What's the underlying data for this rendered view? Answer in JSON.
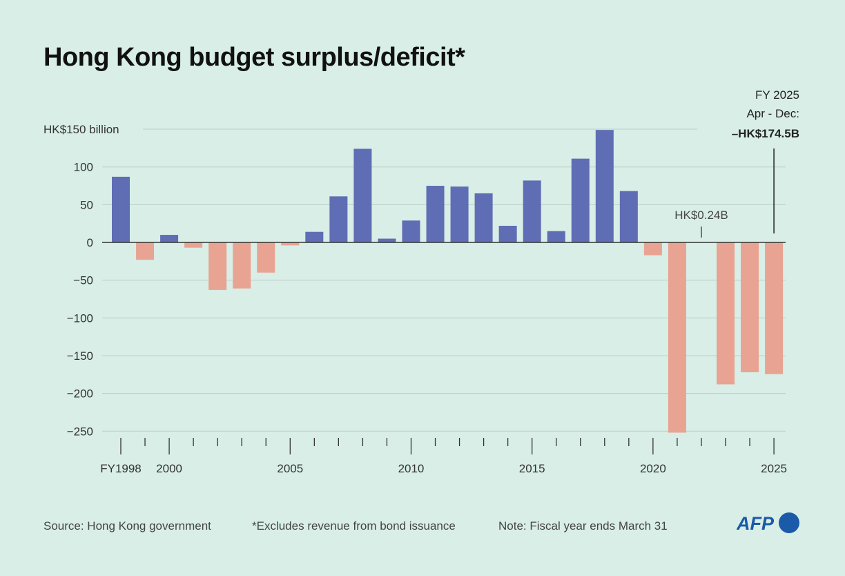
{
  "title": "Hong Kong budget surplus/deficit*",
  "footer": {
    "source": "Source: Hong Kong government",
    "note1": "*Excludes revenue from bond issuance",
    "note2": "Note: Fiscal year ends March 31",
    "logo": "AFP"
  },
  "colors": {
    "background": "#d8eee6",
    "surplus": "#5f6db5",
    "deficit": "#e9a393"
  },
  "chart_data": {
    "type": "bar",
    "title": "Hong Kong budget surplus/deficit*",
    "xlabel": "",
    "ylabel": "",
    "ylim": [
      -250,
      150
    ],
    "grid": true,
    "legend": "none",
    "y_ticks": [
      150,
      100,
      50,
      0,
      -50,
      -100,
      -150,
      -200,
      -250
    ],
    "y_tick_labels": [
      "HK$150 billion",
      "100",
      "50",
      "0",
      "−50",
      "−100",
      "−150",
      "−200",
      "−250"
    ],
    "x_tick_labels": [
      {
        "year": 1998,
        "label": "FY1998"
      },
      {
        "year": 2000,
        "label": "2000"
      },
      {
        "year": 2005,
        "label": "2005"
      },
      {
        "year": 2010,
        "label": "2010"
      },
      {
        "year": 2015,
        "label": "2015"
      },
      {
        "year": 2020,
        "label": "2020"
      },
      {
        "year": 2025,
        "label": "2025"
      }
    ],
    "categories": [
      1998,
      1999,
      2000,
      2001,
      2002,
      2003,
      2004,
      2005,
      2006,
      2007,
      2008,
      2009,
      2010,
      2011,
      2012,
      2013,
      2014,
      2015,
      2016,
      2017,
      2018,
      2019,
      2020,
      2021,
      2022,
      2023,
      2024,
      2025
    ],
    "values": [
      87,
      -23,
      10,
      -7,
      -63,
      -61,
      -40,
      -4,
      14,
      61,
      124,
      5,
      29,
      75,
      74,
      65,
      22,
      82,
      15,
      111,
      149,
      68,
      -17,
      -252,
      0.24,
      -188,
      -172,
      -174.5
    ],
    "annotations": [
      {
        "year": 2022,
        "lines": [
          "HK$0.24B"
        ]
      },
      {
        "year": 2025,
        "lines": [
          "FY 2025",
          "Apr - Dec:",
          "–HK$174.5B"
        ]
      }
    ]
  }
}
